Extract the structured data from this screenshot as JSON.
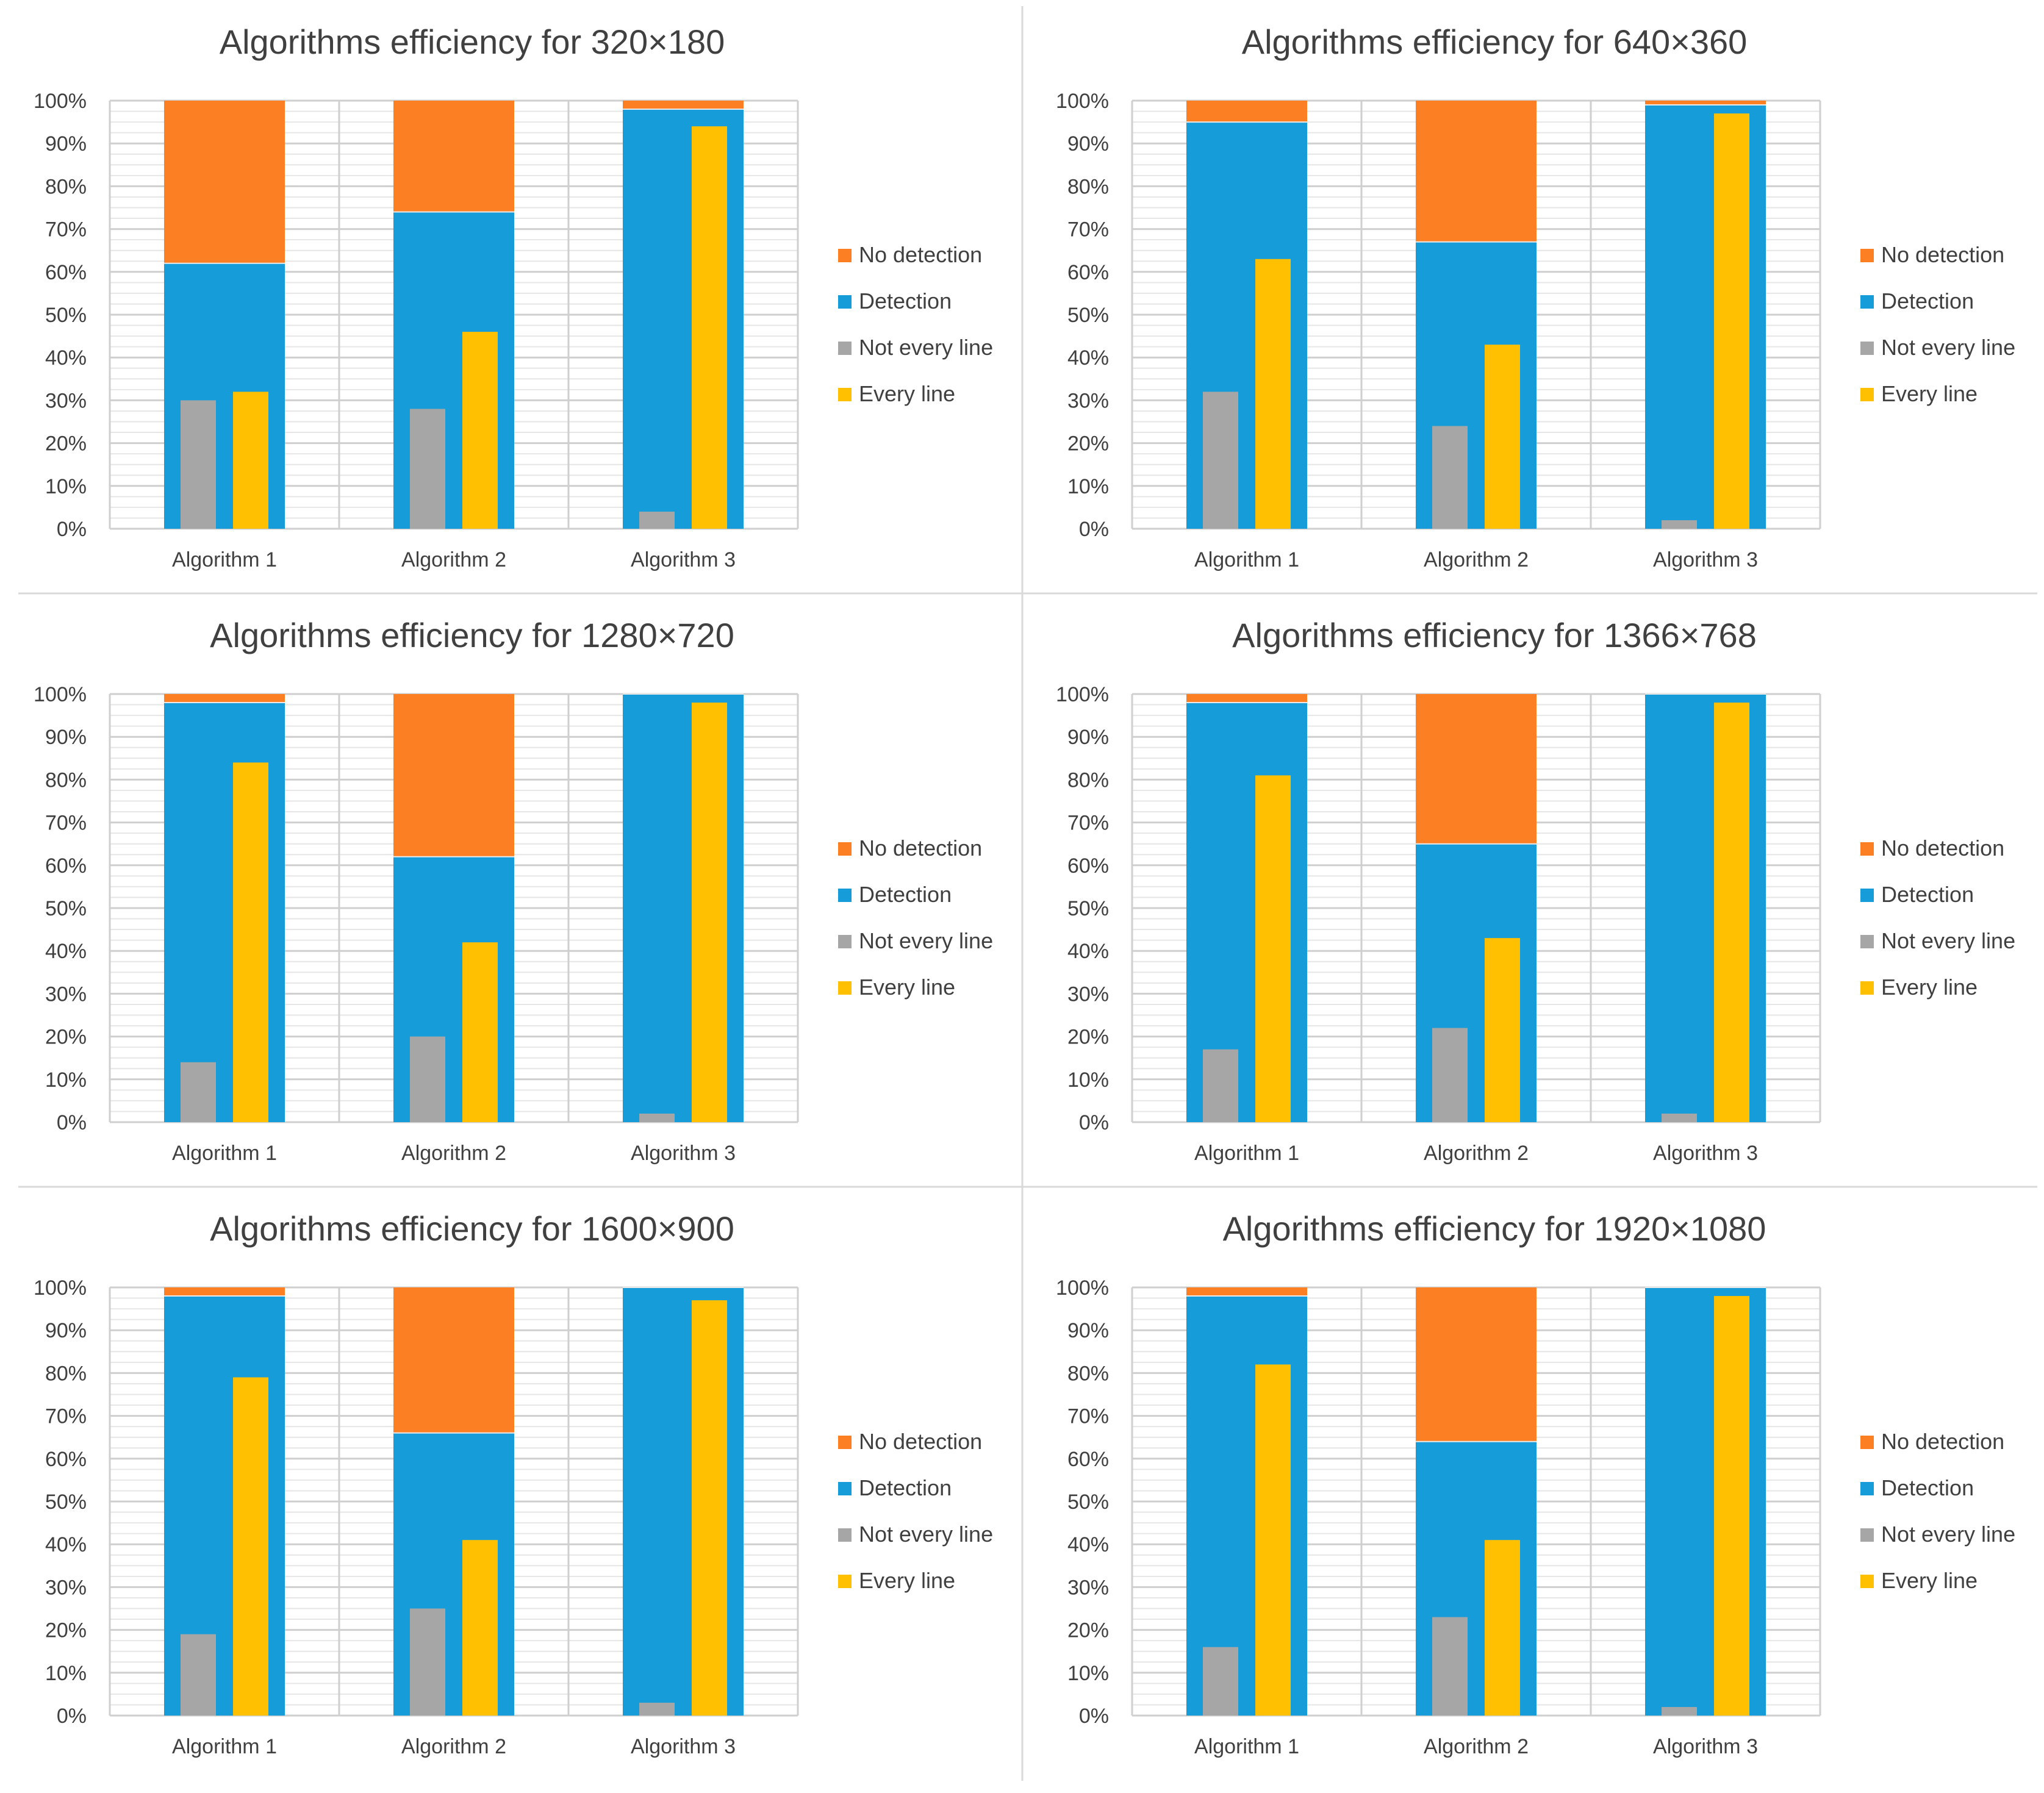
{
  "legend_labels": [
    "No detection",
    "Detection",
    "Not every line",
    "Every line"
  ],
  "colors": {
    "no_detection": "#FD7F23",
    "detection": "#169CD8",
    "not_every_line": "#A6A6A6",
    "every_line": "#FFC001",
    "gridline": "#D9D9D9",
    "axis_text": "#404040",
    "title_text": "#404040"
  },
  "chart_data": [
    {
      "type": "bar",
      "title": "Algorithms efficiency for 320×180",
      "categories": [
        "Algorithm 1",
        "Algorithm 2",
        "Algorithm 3"
      ],
      "y_ticks": [
        "0%",
        "10%",
        "20%",
        "30%",
        "40%",
        "50%",
        "60%",
        "70%",
        "80%",
        "90%",
        "100%"
      ],
      "ylim": [
        0,
        100
      ],
      "grid": true,
      "legend_position": "right",
      "series": [
        {
          "name": "No detection",
          "values": [
            38,
            26,
            2
          ]
        },
        {
          "name": "Detection",
          "values": [
            62,
            74,
            98
          ]
        },
        {
          "name": "Not every line",
          "values": [
            30,
            28,
            4
          ]
        },
        {
          "name": "Every line",
          "values": [
            32,
            46,
            94
          ]
        }
      ]
    },
    {
      "type": "bar",
      "title": "Algorithms efficiency for 640×360",
      "categories": [
        "Algorithm 1",
        "Algorithm 2",
        "Algorithm 3"
      ],
      "y_ticks": [
        "0%",
        "10%",
        "20%",
        "30%",
        "40%",
        "50%",
        "60%",
        "70%",
        "80%",
        "90%",
        "100%"
      ],
      "ylim": [
        0,
        100
      ],
      "grid": true,
      "legend_position": "right",
      "series": [
        {
          "name": "No detection",
          "values": [
            5,
            33,
            1
          ]
        },
        {
          "name": "Detection",
          "values": [
            95,
            67,
            99
          ]
        },
        {
          "name": "Not every line",
          "values": [
            32,
            24,
            2
          ]
        },
        {
          "name": "Every line",
          "values": [
            63,
            43,
            97
          ]
        }
      ]
    },
    {
      "type": "bar",
      "title": "Algorithms efficiency for 1280×720",
      "categories": [
        "Algorithm 1",
        "Algorithm 2",
        "Algorithm 3"
      ],
      "y_ticks": [
        "0%",
        "10%",
        "20%",
        "30%",
        "40%",
        "50%",
        "60%",
        "70%",
        "80%",
        "90%",
        "100%"
      ],
      "ylim": [
        0,
        100
      ],
      "grid": true,
      "legend_position": "right",
      "series": [
        {
          "name": "No detection",
          "values": [
            2,
            38,
            0
          ]
        },
        {
          "name": "Detection",
          "values": [
            98,
            62,
            100
          ]
        },
        {
          "name": "Not every line",
          "values": [
            14,
            20,
            2
          ]
        },
        {
          "name": "Every line",
          "values": [
            84,
            42,
            98
          ]
        }
      ]
    },
    {
      "type": "bar",
      "title": "Algorithms efficiency for 1366×768",
      "categories": [
        "Algorithm 1",
        "Algorithm 2",
        "Algorithm 3"
      ],
      "y_ticks": [
        "0%",
        "10%",
        "20%",
        "30%",
        "40%",
        "50%",
        "60%",
        "70%",
        "80%",
        "90%",
        "100%"
      ],
      "ylim": [
        0,
        100
      ],
      "grid": true,
      "legend_position": "right",
      "series": [
        {
          "name": "No detection",
          "values": [
            2,
            35,
            0
          ]
        },
        {
          "name": "Detection",
          "values": [
            98,
            65,
            100
          ]
        },
        {
          "name": "Not every line",
          "values": [
            17,
            22,
            2
          ]
        },
        {
          "name": "Every line",
          "values": [
            81,
            43,
            98
          ]
        }
      ]
    },
    {
      "type": "bar",
      "title": "Algorithms efficiency for 1600×900",
      "categories": [
        "Algorithm 1",
        "Algorithm 2",
        "Algorithm 3"
      ],
      "y_ticks": [
        "0%",
        "10%",
        "20%",
        "30%",
        "40%",
        "50%",
        "60%",
        "70%",
        "80%",
        "90%",
        "100%"
      ],
      "ylim": [
        0,
        100
      ],
      "grid": true,
      "legend_position": "right",
      "series": [
        {
          "name": "No detection",
          "values": [
            2,
            34,
            0
          ]
        },
        {
          "name": "Detection",
          "values": [
            98,
            66,
            100
          ]
        },
        {
          "name": "Not every line",
          "values": [
            19,
            25,
            3
          ]
        },
        {
          "name": "Every line",
          "values": [
            79,
            41,
            97
          ]
        }
      ]
    },
    {
      "type": "bar",
      "title": "Algorithms efficiency for 1920×1080",
      "categories": [
        "Algorithm 1",
        "Algorithm 2",
        "Algorithm 3"
      ],
      "y_ticks": [
        "0%",
        "10%",
        "20%",
        "30%",
        "40%",
        "50%",
        "60%",
        "70%",
        "80%",
        "90%",
        "100%"
      ],
      "ylim": [
        0,
        100
      ],
      "grid": true,
      "legend_position": "right",
      "series": [
        {
          "name": "No detection",
          "values": [
            2,
            36,
            0
          ]
        },
        {
          "name": "Detection",
          "values": [
            98,
            64,
            100
          ]
        },
        {
          "name": "Not every line",
          "values": [
            16,
            23,
            2
          ]
        },
        {
          "name": "Every line",
          "values": [
            82,
            41,
            98
          ]
        }
      ]
    }
  ]
}
